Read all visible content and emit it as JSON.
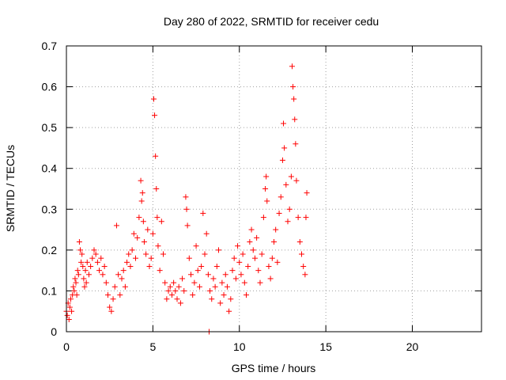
{
  "chart_data": {
    "type": "scatter",
    "title": "Day 280 of 2022, SRMTID for receiver cedu",
    "xlabel": "GPS time / hours",
    "ylabel": "SRMTID / TECUs",
    "xlim": [
      0,
      24
    ],
    "ylim": [
      0,
      0.7
    ],
    "xticks": [
      0,
      5,
      10,
      15,
      20
    ],
    "yticks": [
      0,
      0.1,
      0.2,
      0.3,
      0.4,
      0.5,
      0.6,
      0.7
    ],
    "grid": true,
    "marker": "+",
    "color": "#ff0000",
    "series": [
      {
        "name": "SRMTID",
        "points": [
          [
            0.0,
            0.05
          ],
          [
            0.05,
            0.04
          ],
          [
            0.1,
            0.07
          ],
          [
            0.15,
            0.03
          ],
          [
            0.2,
            0.06
          ],
          [
            0.25,
            0.08
          ],
          [
            0.3,
            0.05
          ],
          [
            0.35,
            0.09
          ],
          [
            0.4,
            0.11
          ],
          [
            0.45,
            0.1
          ],
          [
            0.5,
            0.13
          ],
          [
            0.55,
            0.12
          ],
          [
            0.6,
            0.09
          ],
          [
            0.65,
            0.15
          ],
          [
            0.7,
            0.14
          ],
          [
            0.75,
            0.22
          ],
          [
            0.8,
            0.2
          ],
          [
            0.85,
            0.17
          ],
          [
            0.9,
            0.19
          ],
          [
            0.95,
            0.16
          ],
          [
            1.0,
            0.13
          ],
          [
            1.05,
            0.11
          ],
          [
            1.1,
            0.15
          ],
          [
            1.15,
            0.12
          ],
          [
            1.2,
            0.17
          ],
          [
            1.3,
            0.14
          ],
          [
            1.4,
            0.16
          ],
          [
            1.5,
            0.18
          ],
          [
            1.6,
            0.2
          ],
          [
            1.7,
            0.19
          ],
          [
            1.8,
            0.17
          ],
          [
            1.9,
            0.15
          ],
          [
            2.0,
            0.18
          ],
          [
            2.1,
            0.14
          ],
          [
            2.2,
            0.16
          ],
          [
            2.3,
            0.12
          ],
          [
            2.4,
            0.09
          ],
          [
            2.5,
            0.06
          ],
          [
            2.6,
            0.05
          ],
          [
            2.7,
            0.08
          ],
          [
            2.8,
            0.11
          ],
          [
            2.9,
            0.26
          ],
          [
            3.0,
            0.14
          ],
          [
            3.1,
            0.09
          ],
          [
            3.2,
            0.13
          ],
          [
            3.3,
            0.15
          ],
          [
            3.4,
            0.11
          ],
          [
            3.5,
            0.17
          ],
          [
            3.6,
            0.19
          ],
          [
            3.7,
            0.16
          ],
          [
            3.8,
            0.2
          ],
          [
            3.9,
            0.24
          ],
          [
            4.0,
            0.18
          ],
          [
            4.1,
            0.23
          ],
          [
            4.2,
            0.28
          ],
          [
            4.3,
            0.37
          ],
          [
            4.35,
            0.32
          ],
          [
            4.4,
            0.34
          ],
          [
            4.45,
            0.27
          ],
          [
            4.5,
            0.22
          ],
          [
            4.6,
            0.19
          ],
          [
            4.7,
            0.25
          ],
          [
            4.8,
            0.16
          ],
          [
            4.9,
            0.18
          ],
          [
            5.0,
            0.24
          ],
          [
            5.05,
            0.57
          ],
          [
            5.1,
            0.53
          ],
          [
            5.15,
            0.43
          ],
          [
            5.2,
            0.35
          ],
          [
            5.25,
            0.28
          ],
          [
            5.3,
            0.21
          ],
          [
            5.4,
            0.15
          ],
          [
            5.5,
            0.27
          ],
          [
            5.6,
            0.19
          ],
          [
            5.7,
            0.12
          ],
          [
            5.8,
            0.08
          ],
          [
            5.9,
            0.1
          ],
          [
            6.0,
            0.11
          ],
          [
            6.1,
            0.09
          ],
          [
            6.2,
            0.12
          ],
          [
            6.3,
            0.1
          ],
          [
            6.4,
            0.08
          ],
          [
            6.5,
            0.11
          ],
          [
            6.6,
            0.07
          ],
          [
            6.7,
            0.13
          ],
          [
            6.8,
            0.1
          ],
          [
            6.9,
            0.33
          ],
          [
            6.95,
            0.3
          ],
          [
            7.0,
            0.26
          ],
          [
            7.1,
            0.18
          ],
          [
            7.2,
            0.14
          ],
          [
            7.3,
            0.09
          ],
          [
            7.4,
            0.12
          ],
          [
            7.5,
            0.21
          ],
          [
            7.6,
            0.15
          ],
          [
            7.7,
            0.11
          ],
          [
            7.8,
            0.16
          ],
          [
            7.9,
            0.29
          ],
          [
            8.0,
            0.19
          ],
          [
            8.1,
            0.24
          ],
          [
            8.2,
            0.14
          ],
          [
            8.25,
            0.0
          ],
          [
            8.3,
            0.1
          ],
          [
            8.4,
            0.08
          ],
          [
            8.5,
            0.13
          ],
          [
            8.6,
            0.11
          ],
          [
            8.7,
            0.16
          ],
          [
            8.8,
            0.2
          ],
          [
            8.9,
            0.07
          ],
          [
            9.0,
            0.12
          ],
          [
            9.1,
            0.09
          ],
          [
            9.2,
            0.14
          ],
          [
            9.3,
            0.11
          ],
          [
            9.4,
            0.05
          ],
          [
            9.5,
            0.08
          ],
          [
            9.6,
            0.15
          ],
          [
            9.7,
            0.18
          ],
          [
            9.8,
            0.13
          ],
          [
            9.9,
            0.21
          ],
          [
            10.0,
            0.17
          ],
          [
            10.1,
            0.14
          ],
          [
            10.2,
            0.19
          ],
          [
            10.3,
            0.12
          ],
          [
            10.4,
            0.09
          ],
          [
            10.5,
            0.16
          ],
          [
            10.6,
            0.22
          ],
          [
            10.7,
            0.25
          ],
          [
            10.8,
            0.2
          ],
          [
            10.9,
            0.18
          ],
          [
            11.0,
            0.23
          ],
          [
            11.1,
            0.15
          ],
          [
            11.2,
            0.12
          ],
          [
            11.3,
            0.19
          ],
          [
            11.4,
            0.28
          ],
          [
            11.5,
            0.35
          ],
          [
            11.55,
            0.38
          ],
          [
            11.6,
            0.32
          ],
          [
            11.7,
            0.16
          ],
          [
            11.8,
            0.13
          ],
          [
            11.9,
            0.18
          ],
          [
            12.0,
            0.22
          ],
          [
            12.1,
            0.25
          ],
          [
            12.2,
            0.17
          ],
          [
            12.3,
            0.29
          ],
          [
            12.4,
            0.33
          ],
          [
            12.5,
            0.42
          ],
          [
            12.55,
            0.51
          ],
          [
            12.6,
            0.45
          ],
          [
            12.7,
            0.36
          ],
          [
            12.8,
            0.27
          ],
          [
            12.9,
            0.3
          ],
          [
            13.0,
            0.38
          ],
          [
            13.05,
            0.65
          ],
          [
            13.1,
            0.6
          ],
          [
            13.15,
            0.57
          ],
          [
            13.2,
            0.52
          ],
          [
            13.25,
            0.46
          ],
          [
            13.3,
            0.37
          ],
          [
            13.4,
            0.28
          ],
          [
            13.5,
            0.22
          ],
          [
            13.6,
            0.19
          ],
          [
            13.7,
            0.16
          ],
          [
            13.8,
            0.14
          ],
          [
            13.85,
            0.28
          ],
          [
            13.9,
            0.34
          ]
        ]
      }
    ]
  }
}
